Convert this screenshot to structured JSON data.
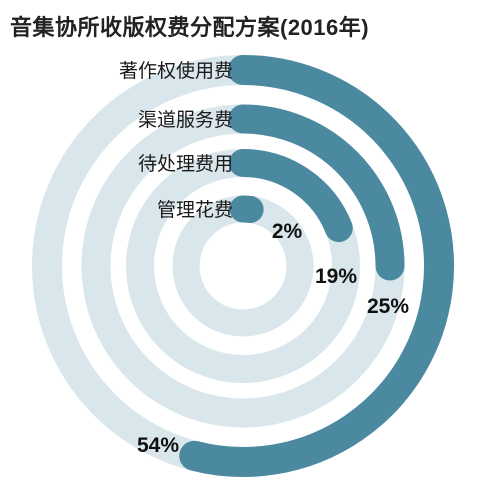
{
  "chart_data": {
    "type": "radial-bar",
    "title": "音集协所收版权费分配方案(2016年)",
    "categories": [
      "著作权使用费",
      "渠道服务费",
      "待处理费用",
      "管理花费"
    ],
    "values": [
      54,
      25,
      19,
      2
    ],
    "value_labels": [
      "54%",
      "25%",
      "19%",
      "2%"
    ],
    "unit": "%",
    "colors": {
      "bar": "#4a89a0",
      "track": "#d9e6ec",
      "text": "#1a1a1a"
    }
  }
}
